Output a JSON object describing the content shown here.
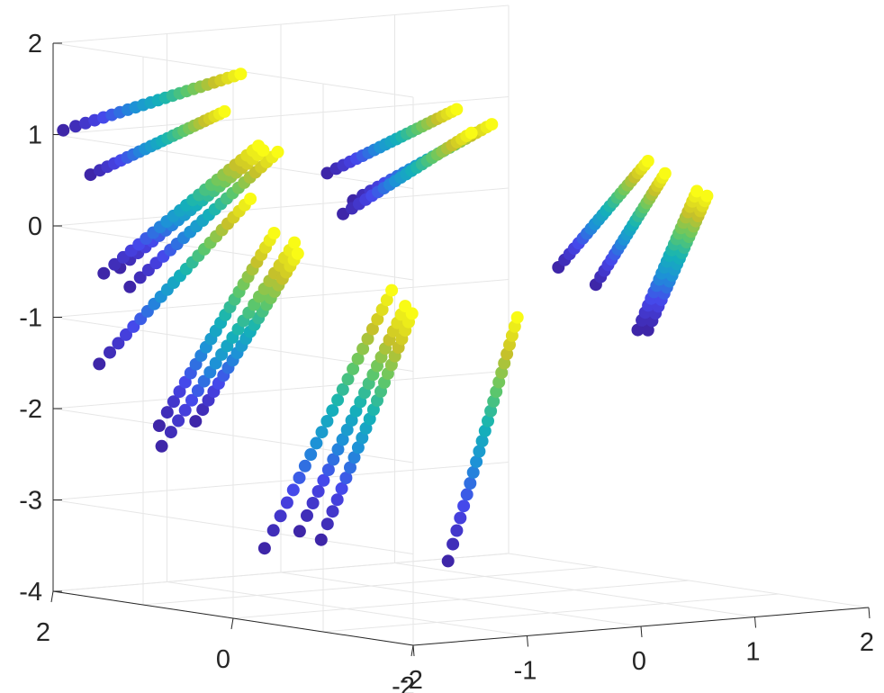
{
  "chart_data": {
    "type": "scatter3d",
    "title": "",
    "xlabel": "",
    "ylabel": "",
    "zlabel": "",
    "xlim": [
      -2,
      2
    ],
    "ylim": [
      -2,
      2
    ],
    "zlim": [
      -4,
      2
    ],
    "x_ticks": [
      "-2",
      "-1",
      "0",
      "1",
      "2"
    ],
    "y_ticks": [
      "2",
      "0",
      "-2"
    ],
    "z_ticks": [
      "2",
      "1",
      "0",
      "-1",
      "-2",
      "-3",
      "-4"
    ],
    "grid": true,
    "box": "open back planes",
    "colormap": "parula",
    "colormap_stops": [
      "#3e26a8",
      "#4746eb",
      "#1e8fd9",
      "#14b3b7",
      "#62c866",
      "#c9c128",
      "#f9fb15"
    ],
    "point_count_per_trail": 24,
    "trails": [
      {
        "start": [
          -1.95,
          1.95,
          1.05
        ],
        "end": [
          -0.55,
          1.75,
          1.55
        ]
      },
      {
        "start": [
          -1.75,
          1.9,
          0.55
        ],
        "end": [
          -0.85,
          1.55,
          1.2
        ]
      },
      {
        "start": [
          -1.95,
          1.5,
          -0.45
        ],
        "end": [
          -0.75,
          1.3,
          0.85
        ]
      },
      {
        "start": [
          -1.8,
          1.4,
          -0.6
        ],
        "end": [
          -0.7,
          1.15,
          0.8
        ]
      },
      {
        "start": [
          -1.65,
          1.7,
          -0.45
        ],
        "end": [
          -0.55,
          1.5,
          0.75
        ]
      },
      {
        "start": [
          -1.95,
          1.55,
          -1.45
        ],
        "end": [
          -0.9,
          1.2,
          0.3
        ]
      },
      {
        "start": [
          -1.7,
          1.2,
          -2.1
        ],
        "end": [
          -0.85,
          1.0,
          -0.05
        ]
      },
      {
        "start": [
          -1.6,
          1.3,
          -2.35
        ],
        "end": [
          -0.75,
          0.9,
          -0.15
        ]
      },
      {
        "start": [
          -1.5,
          1.05,
          -2.05
        ],
        "end": [
          -0.8,
          0.8,
          -0.25
        ]
      },
      {
        "start": [
          -1.25,
          0.6,
          -3.4
        ],
        "end": [
          -0.45,
          0.2,
          -0.6
        ]
      },
      {
        "start": [
          -1.1,
          0.4,
          -3.2
        ],
        "end": [
          -0.45,
          0.05,
          -0.75
        ]
      },
      {
        "start": [
          -0.95,
          0.35,
          -3.3
        ],
        "end": [
          -0.35,
          0.1,
          -0.85
        ]
      },
      {
        "start": [
          -0.35,
          -0.3,
          -3.5
        ],
        "end": [
          0.1,
          -0.5,
          -0.85
        ]
      },
      {
        "start": [
          -0.7,
          0.6,
          0.65
        ],
        "end": [
          0.2,
          0.3,
          1.3
        ]
      },
      {
        "start": [
          -0.55,
          0.5,
          0.35
        ],
        "end": [
          0.35,
          0.1,
          1.15
        ]
      },
      {
        "start": [
          -0.6,
          0.55,
          0.2
        ],
        "end": [
          0.25,
          0.2,
          1.05
        ]
      },
      {
        "start": [
          0.5,
          -0.45,
          -0.35
        ],
        "end": [
          1.05,
          -0.75,
          0.8
        ]
      },
      {
        "start": [
          0.75,
          -0.55,
          -0.55
        ],
        "end": [
          1.2,
          -0.75,
          0.65
        ]
      },
      {
        "start": [
          1.0,
          -0.7,
          -1.05
        ],
        "end": [
          1.4,
          -0.85,
          0.45
        ]
      },
      {
        "start": [
          1.05,
          -0.75,
          -1.05
        ],
        "end": [
          1.45,
          -0.9,
          0.4
        ]
      }
    ]
  }
}
